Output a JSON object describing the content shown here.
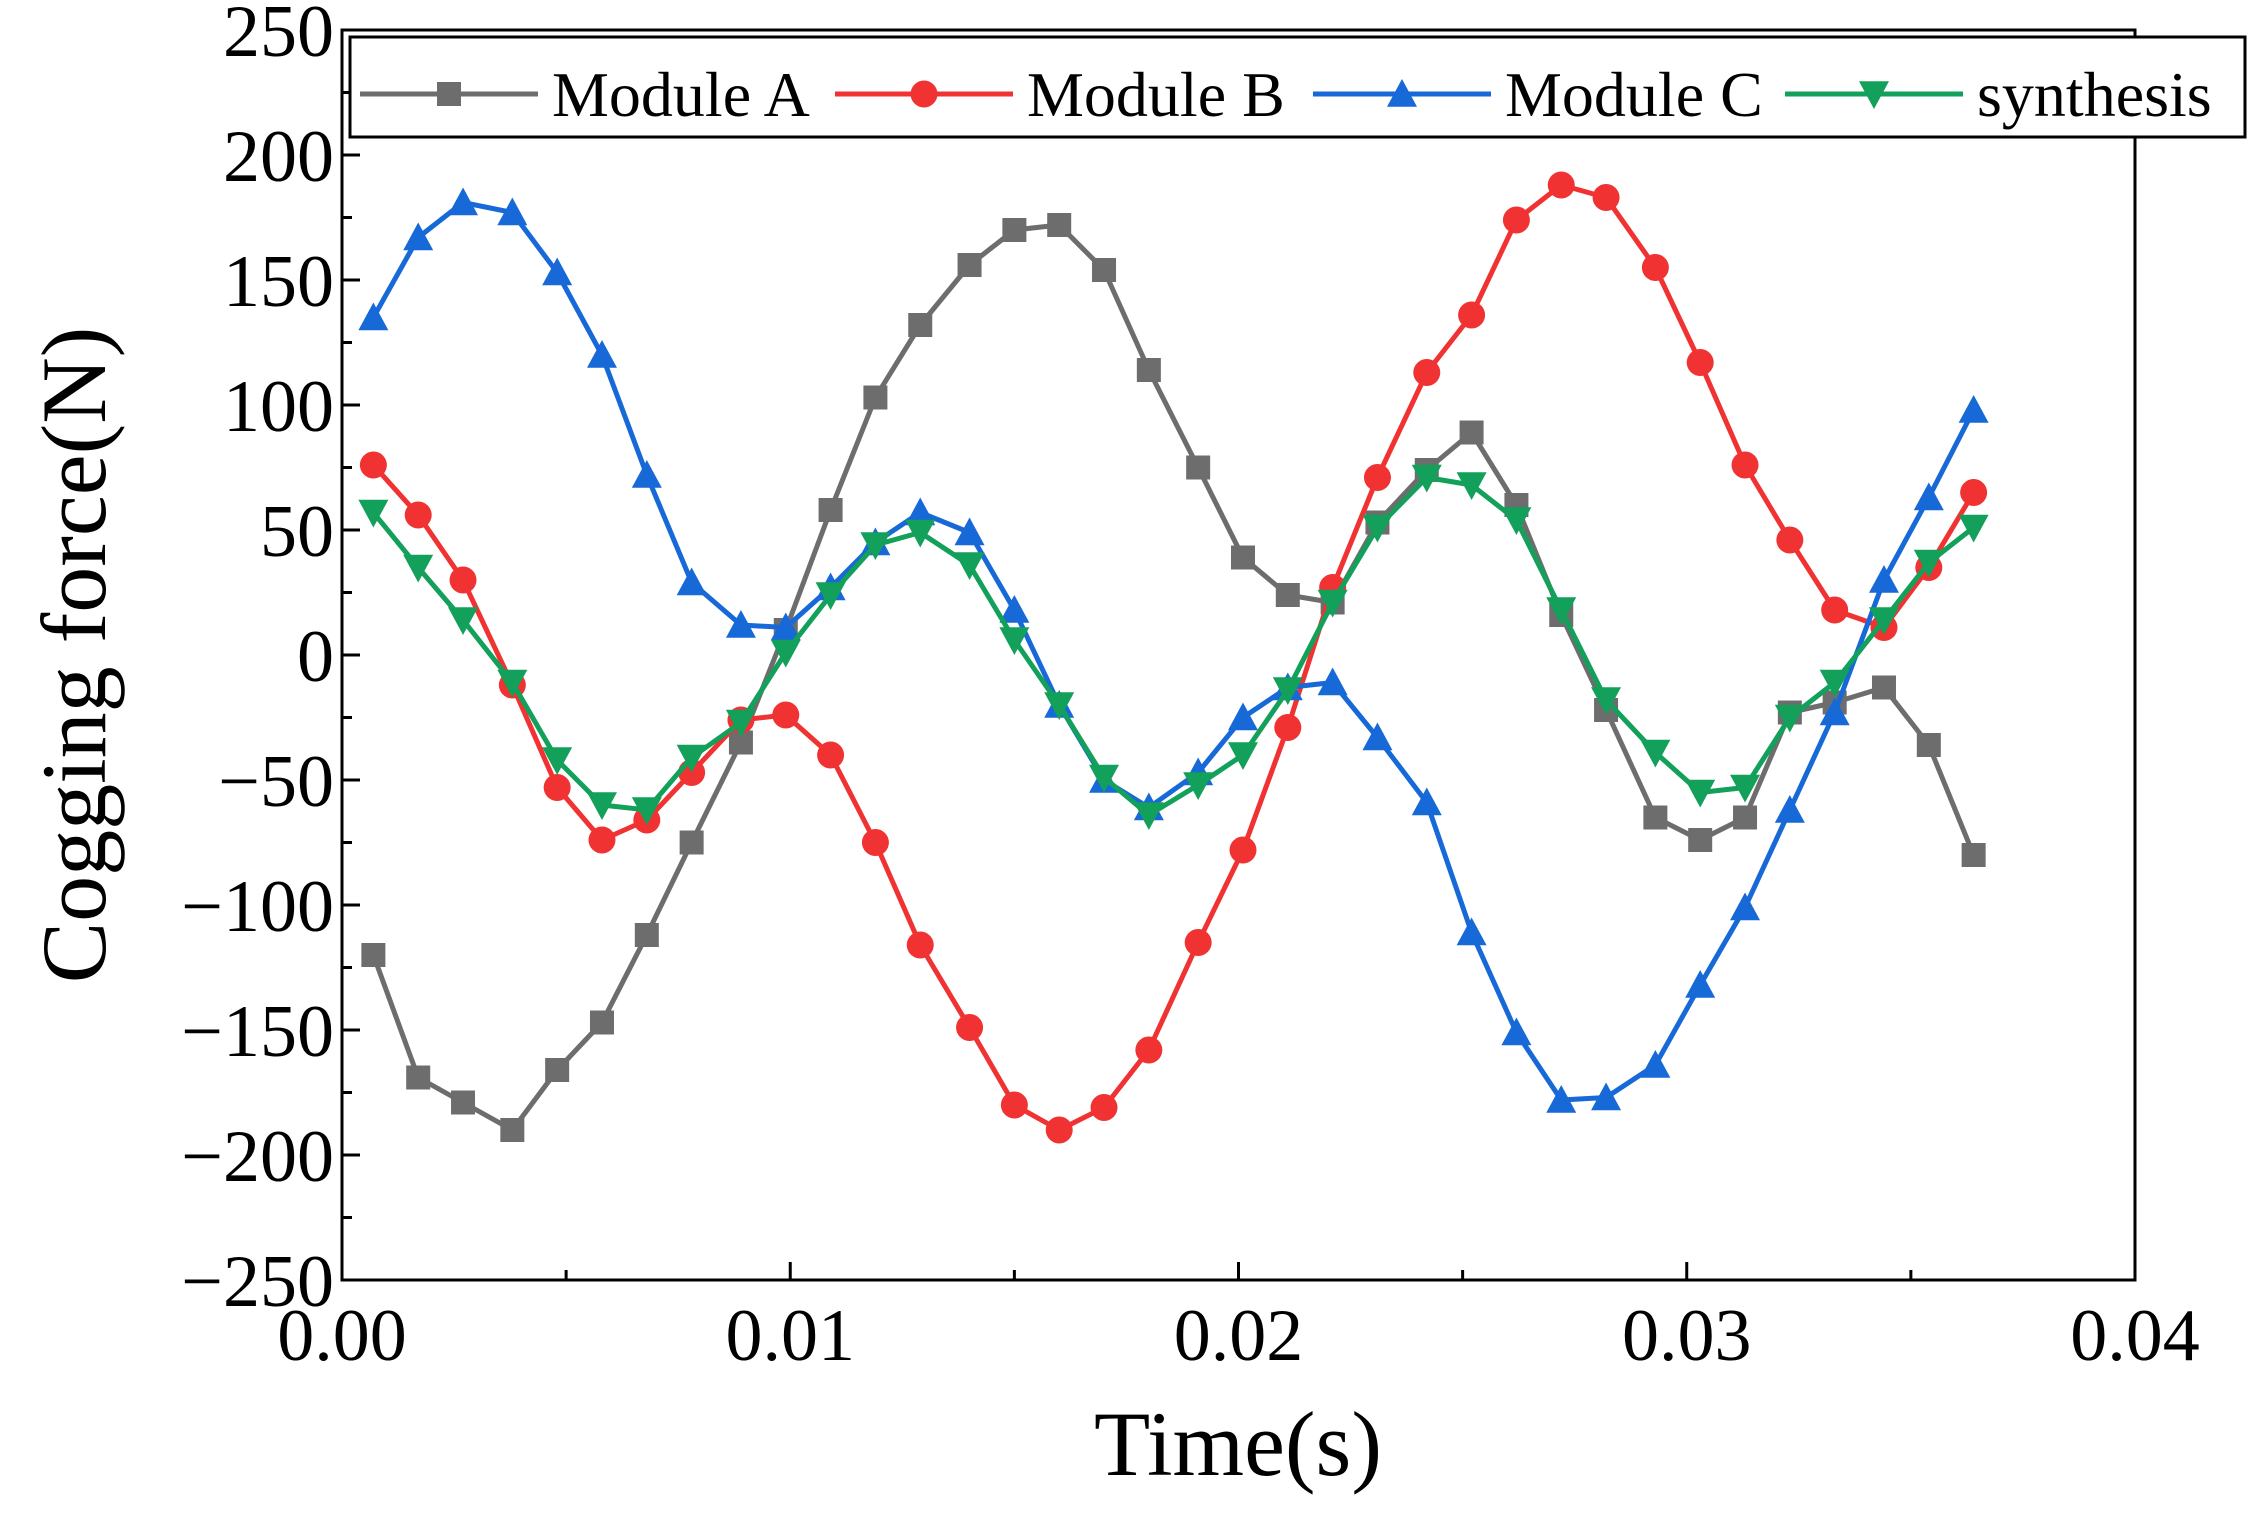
{
  "chart_data": {
    "type": "line",
    "title": "",
    "xlabel": "Time(s)",
    "ylabel": "Cogging force(N)",
    "xlim": [
      0.0,
      0.04
    ],
    "ylim": [
      -250,
      250
    ],
    "x_ticks": [
      0.0,
      0.01,
      0.02,
      0.03,
      0.04
    ],
    "x_tick_labels": [
      "0.00",
      "0.01",
      "0.02",
      "0.03",
      "0.04"
    ],
    "y_ticks": [
      250,
      200,
      150,
      100,
      50,
      0,
      -50,
      -100,
      -150,
      -200,
      -250
    ],
    "y_tick_labels": [
      "250",
      "200",
      "150",
      "100",
      "50",
      "0",
      "−50",
      "−100",
      "−150",
      "−200",
      "−250"
    ],
    "grid": false,
    "legend_position": "top",
    "x": [
      0.0007,
      0.0017,
      0.0027,
      0.0038,
      0.0048,
      0.0058,
      0.0068,
      0.0078,
      0.0089,
      0.0099,
      0.0109,
      0.0119,
      0.0129,
      0.014,
      0.015,
      0.016,
      0.017,
      0.018,
      0.0191,
      0.0201,
      0.0211,
      0.0221,
      0.0231,
      0.0242,
      0.0252,
      0.0262,
      0.0272,
      0.0282,
      0.0293,
      0.0303,
      0.0313,
      0.0323,
      0.0333,
      0.0344,
      0.0354,
      0.0364
    ],
    "series": [
      {
        "name": "Module A",
        "color": "#6d6d6d",
        "marker": "square",
        "values": [
          -120,
          -169,
          -179,
          -190,
          -166,
          -147,
          -112,
          -75,
          -35,
          10,
          58,
          103,
          132,
          156,
          170,
          172,
          154,
          114,
          75,
          39,
          24,
          21,
          53,
          74,
          89,
          60,
          16,
          -22,
          -65,
          -74,
          -65,
          -23,
          -19,
          -13,
          -36,
          -80
        ]
      },
      {
        "name": "Module B",
        "color": "#f03232",
        "marker": "circle",
        "values": [
          76,
          56,
          30,
          -12,
          -53,
          -74,
          -66,
          -47,
          -26,
          -24,
          -40,
          -75,
          -116,
          -149,
          -180,
          -190,
          -181,
          -158,
          -115,
          -78,
          -29,
          27,
          71,
          113,
          136,
          174,
          188,
          183,
          155,
          117,
          76,
          46,
          18,
          11,
          35,
          65
        ]
      },
      {
        "name": "Module C",
        "color": "#1769d8",
        "marker": "triangle-up",
        "values": [
          135,
          167,
          181,
          177,
          153,
          120,
          72,
          29,
          12,
          11,
          27,
          45,
          57,
          49,
          18,
          -20,
          -50,
          -61,
          -47,
          -25,
          -13,
          -11,
          -33,
          -59,
          -111,
          -151,
          -178,
          -177,
          -164,
          -132,
          -101,
          -62,
          -23,
          30,
          63,
          98
        ]
      },
      {
        "name": "synthesis",
        "color": "#12a05a",
        "marker": "triangle-down",
        "values": [
          57,
          35,
          14,
          -11,
          -42,
          -60,
          -62,
          -41,
          -27,
          1,
          24,
          44,
          49,
          36,
          6,
          -20,
          -49,
          -64,
          -52,
          -40,
          -14,
          21,
          51,
          71,
          68,
          54,
          18,
          -18,
          -39,
          -55,
          -53,
          -25,
          -11,
          14,
          37,
          51
        ]
      }
    ]
  }
}
